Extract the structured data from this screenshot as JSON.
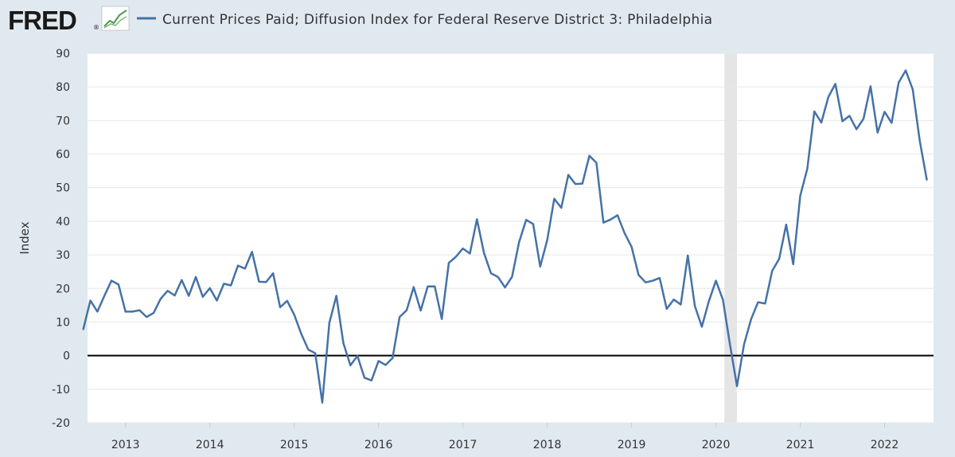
{
  "header": {
    "logo_text": "FRED",
    "logo_mark": "®",
    "logo_icon": "chart-line-icon"
  },
  "colors": {
    "background": "#e1e9f0",
    "plot_background": "#ffffff",
    "series_line": "#4572a7",
    "zero_line": "#000000",
    "recession_band": "#e5e5e5",
    "logo_text": "#1a1a1a",
    "tick_label": "#333333"
  },
  "chart_data": {
    "type": "line",
    "title": "",
    "legend": [
      "Current Prices Paid; Diffusion Index for Federal Reserve District 3: Philadelphia"
    ],
    "legend_position": "top-left",
    "xlabel": "",
    "ylabel": "Index",
    "ylim": [
      -20,
      90
    ],
    "yticks": [
      90,
      80,
      70,
      60,
      50,
      40,
      30,
      20,
      10,
      0,
      -10,
      -20
    ],
    "xlim": [
      2012.55,
      2022.58
    ],
    "xticks": [
      "2013",
      "2014",
      "2015",
      "2016",
      "2017",
      "2018",
      "2019",
      "2020",
      "2021",
      "2022"
    ],
    "grid": "horizontal",
    "reference_line": {
      "y": 0
    },
    "recession_shading": [
      {
        "start": 2020.1,
        "end": 2020.25
      }
    ],
    "series": [
      {
        "name": "Current Prices Paid; Diffusion Index for Federal Reserve District 3: Philadelphia",
        "start_year": 2012,
        "start_month": 7,
        "frequency": "monthly",
        "values": [
          7.9,
          16.4,
          13.1,
          17.8,
          22.3,
          21.2,
          13.1,
          13.1,
          13.5,
          11.5,
          12.7,
          16.9,
          19.3,
          17.9,
          22.5,
          17.8,
          23.4,
          17.5,
          20.1,
          16.4,
          21.4,
          20.9,
          26.8,
          25.9,
          30.9,
          22.0,
          21.9,
          24.5,
          14.4,
          16.3,
          12.2,
          6.5,
          1.8,
          0.7,
          -14.0,
          9.7,
          17.8,
          3.7,
          -2.9,
          -0.1,
          -6.6,
          -7.4,
          -1.6,
          -2.8,
          -0.7,
          11.5,
          13.5,
          20.4,
          13.4,
          20.6,
          20.6,
          10.9,
          27.6,
          29.4,
          31.9,
          30.4,
          40.6,
          30.6,
          24.5,
          23.4,
          20.3,
          23.5,
          33.8,
          40.4,
          39.2,
          26.5,
          34.4,
          46.7,
          44.0,
          53.8,
          51.1,
          51.2,
          59.5,
          57.4,
          39.6,
          40.5,
          41.8,
          36.5,
          32.4,
          24.0,
          21.8,
          22.3,
          23.1,
          13.9,
          16.7,
          15.2,
          29.8,
          14.8,
          8.6,
          16.2,
          22.3,
          16.6,
          3.3,
          -9.1,
          3.3,
          10.8,
          15.9,
          15.5,
          25.2,
          28.8,
          39.0,
          27.2,
          47.6,
          55.6,
          72.7,
          69.4,
          77.0,
          80.9,
          69.8,
          71.4,
          67.4,
          70.5,
          80.2,
          66.4,
          72.6,
          69.3,
          81.3,
          84.9,
          79.3,
          64.0,
          52.4
        ]
      }
    ]
  }
}
